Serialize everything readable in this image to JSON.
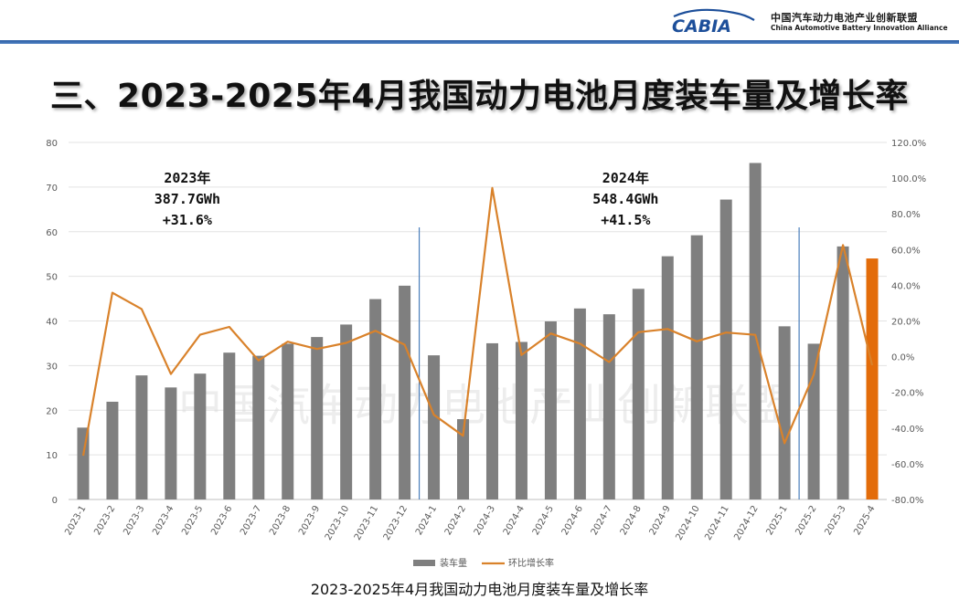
{
  "header": {
    "logo_text": "CABIA",
    "org_name_cn": "中国汽车动力电池产业创新联盟",
    "org_name_en": "China Automotive Battery Innovation Alliance"
  },
  "slide_title": "三、2023-2025年4月我国动力电池月度装车量及增长率",
  "caption": "2023-2025年4月我国动力电池月度装车量及增长率",
  "watermark": "中国汽车动力电池产业创新联盟",
  "colors": {
    "bar": "#7f7f7f",
    "bar_highlight": "#e36c0a",
    "line": "#d9822b",
    "divider": "#4a7ebb",
    "header_rule": "#3366aa"
  },
  "chart_data": {
    "type": "bar",
    "title": "",
    "categories": [
      "2023-1",
      "2023-2",
      "2023-3",
      "2023-4",
      "2023-5",
      "2023-6",
      "2023-7",
      "2023-8",
      "2023-9",
      "2023-10",
      "2023-11",
      "2023-12",
      "2024-1",
      "2024-2",
      "2024-3",
      "2024-4",
      "2024-5",
      "2024-6",
      "2024-7",
      "2024-8",
      "2024-9",
      "2024-10",
      "2024-11",
      "2024-12",
      "2025-1",
      "2025-2",
      "2025-3",
      "2025-4"
    ],
    "series": [
      {
        "name": "装车量",
        "type": "bar",
        "axis": "left",
        "values": [
          16.1,
          21.9,
          27.8,
          25.1,
          28.2,
          32.9,
          32.2,
          34.9,
          36.4,
          39.2,
          44.9,
          47.9,
          32.3,
          18.0,
          35.0,
          35.3,
          39.9,
          42.8,
          41.5,
          47.2,
          54.5,
          59.2,
          67.2,
          75.4,
          38.8,
          34.9,
          56.7,
          54.0
        ]
      },
      {
        "name": "环比增长率",
        "type": "line",
        "axis": "right",
        "values": [
          -55.5,
          35.8,
          26.7,
          -9.7,
          12.3,
          16.7,
          -2.1,
          8.4,
          4.3,
          7.7,
          14.5,
          6.7,
          -32.6,
          -44.3,
          94.5,
          0.9,
          13.0,
          7.3,
          -3.0,
          13.7,
          15.5,
          8.6,
          13.5,
          12.2,
          -48.5,
          -10.1,
          62.5,
          -4.8
        ]
      }
    ],
    "highlight_index": 27,
    "y_left": {
      "min": 0,
      "max": 80,
      "ticks": [
        "0",
        "10",
        "20",
        "30",
        "40",
        "50",
        "60",
        "70",
        "80"
      ]
    },
    "y_right": {
      "min": -80,
      "max": 120,
      "ticks": [
        "-80.0%",
        "-60.0%",
        "-40.0%",
        "-20.0%",
        "0.0%",
        "20.0%",
        "40.0%",
        "60.0%",
        "80.0%",
        "100.0%",
        "120.0%"
      ]
    },
    "dividers_after": [
      "2023-12",
      "2025-1"
    ],
    "annotations": [
      {
        "anchor": "2023-4",
        "lines": [
          "2023年",
          "387.7GWh",
          "+31.6%"
        ]
      },
      {
        "anchor": "2024-7",
        "lines": [
          "2024年",
          "548.4GWh",
          "+41.5%"
        ]
      }
    ],
    "legend": [
      "装车量",
      "环比增长率"
    ],
    "grid": true
  }
}
